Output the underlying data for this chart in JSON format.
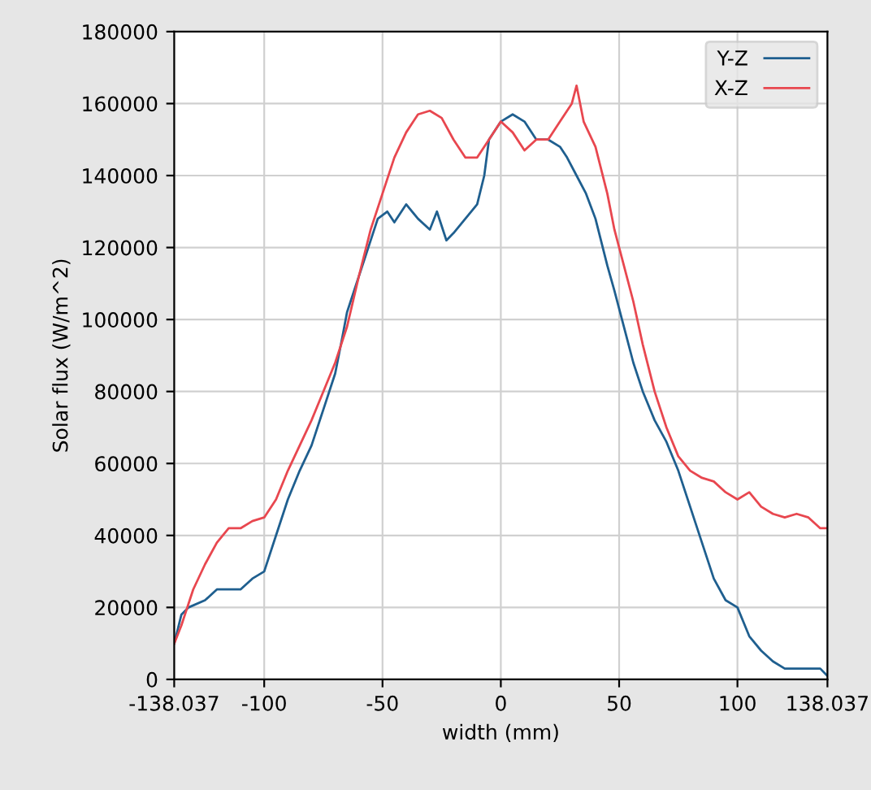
{
  "chart_data": {
    "type": "line",
    "xlabel": "width (mm)",
    "ylabel": "Solar flux (W/m^2)",
    "xlim": [
      -138.037,
      138.037
    ],
    "xticks": [
      {
        "value": -138.037,
        "label": "-138.037"
      },
      -100,
      -50,
      0,
      50,
      100,
      {
        "value": 138.037,
        "label": "138.037"
      }
    ],
    "ylim": [
      0,
      180000
    ],
    "yticks": [
      0,
      20000,
      40000,
      60000,
      80000,
      100000,
      120000,
      140000,
      160000,
      180000
    ],
    "grid": true,
    "legend": "top right",
    "marker": "none",
    "line_style": "solid",
    "series": [
      {
        "name": "Y-Z",
        "color": "#1f5f8f",
        "x": [
          -138,
          -135,
          -132,
          -125,
          -120,
          -110,
          -105,
          -100,
          -95,
          -90,
          -85,
          -80,
          -75,
          -70,
          -67,
          -65,
          -60,
          -56,
          -52,
          -48,
          -45,
          -40,
          -35,
          -30,
          -27,
          -23,
          -20,
          -15,
          -10,
          -7,
          -5,
          0,
          5,
          10,
          15,
          20,
          25,
          28,
          32,
          36,
          40,
          45,
          48,
          52,
          56,
          60,
          65,
          70,
          75,
          80,
          85,
          90,
          95,
          100,
          105,
          110,
          115,
          120,
          125,
          130,
          135,
          138
        ],
        "values": [
          10000,
          18000,
          20000,
          22000,
          25000,
          25000,
          28000,
          30000,
          40000,
          50000,
          58000,
          65000,
          75000,
          85000,
          95000,
          102000,
          112000,
          120000,
          128000,
          130000,
          127000,
          132000,
          128000,
          125000,
          130000,
          122000,
          124000,
          128000,
          132000,
          140000,
          150000,
          155000,
          157000,
          155000,
          150000,
          150000,
          148000,
          145000,
          140000,
          135000,
          128000,
          115000,
          108000,
          98000,
          88000,
          80000,
          72000,
          66000,
          58000,
          48000,
          38000,
          28000,
          22000,
          20000,
          12000,
          8000,
          5000,
          3000,
          3000,
          3000,
          3000,
          1000
        ]
      },
      {
        "name": "X-Z",
        "color": "#e8474f",
        "x": [
          -138,
          -135,
          -130,
          -125,
          -120,
          -115,
          -110,
          -105,
          -100,
          -95,
          -90,
          -85,
          -80,
          -75,
          -70,
          -65,
          -60,
          -55,
          -50,
          -45,
          -40,
          -35,
          -30,
          -25,
          -20,
          -15,
          -10,
          -5,
          0,
          5,
          10,
          15,
          20,
          25,
          30,
          32,
          35,
          40,
          45,
          48,
          52,
          56,
          60,
          65,
          70,
          75,
          80,
          85,
          90,
          95,
          100,
          105,
          110,
          115,
          120,
          125,
          130,
          135,
          138
        ],
        "values": [
          10000,
          15000,
          25000,
          32000,
          38000,
          42000,
          42000,
          44000,
          45000,
          50000,
          58000,
          65000,
          72000,
          80000,
          88000,
          98000,
          112000,
          125000,
          135000,
          145000,
          152000,
          157000,
          158000,
          156000,
          150000,
          145000,
          145000,
          150000,
          155000,
          152000,
          147000,
          150000,
          150000,
          155000,
          160000,
          165000,
          155000,
          148000,
          135000,
          125000,
          115000,
          105000,
          93000,
          80000,
          70000,
          62000,
          58000,
          56000,
          55000,
          52000,
          50000,
          52000,
          48000,
          46000,
          45000,
          46000,
          45000,
          42000,
          42000
        ]
      }
    ]
  }
}
